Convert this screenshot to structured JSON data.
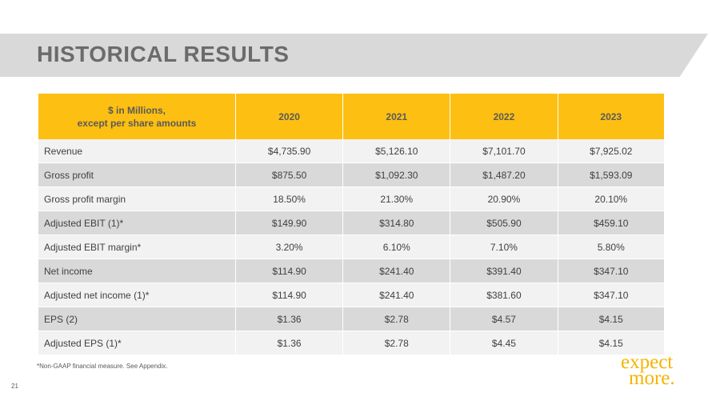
{
  "slide": {
    "title": "HISTORICAL RESULTS",
    "footnote": "*Non-GAAP financial measure. See Appendix.",
    "page_number": "21",
    "logo": {
      "line1": "expect",
      "line2": "more."
    }
  },
  "table": {
    "header_label_line1": "$ in Millions,",
    "header_label_line2": "except per share amounts",
    "years": [
      "2020",
      "2021",
      "2022",
      "2023"
    ],
    "rows": [
      {
        "label": "Revenue",
        "values": [
          "$4,735.90",
          "$5,126.10",
          "$7,101.70",
          "$7,925.02"
        ]
      },
      {
        "label": "Gross profit",
        "values": [
          "$875.50",
          "$1,092.30",
          "$1,487.20",
          "$1,593.09"
        ]
      },
      {
        "label": "Gross profit margin",
        "values": [
          "18.50%",
          "21.30%",
          "20.90%",
          "20.10%"
        ]
      },
      {
        "label": "Adjusted EBIT (1)*",
        "values": [
          "$149.90",
          "$314.80",
          "$505.90",
          "$459.10"
        ]
      },
      {
        "label": "Adjusted EBIT margin*",
        "values": [
          "3.20%",
          "6.10%",
          "7.10%",
          "5.80%"
        ]
      },
      {
        "label": "Net income",
        "values": [
          "$114.90",
          "$241.40",
          "$391.40",
          "$347.10"
        ]
      },
      {
        "label": "Adjusted net income (1)*",
        "values": [
          "$114.90",
          "$241.40",
          "$381.60",
          "$347.10"
        ]
      },
      {
        "label": "EPS (2)",
        "values": [
          "$1.36",
          "$2.78",
          "$4.57",
          "$4.15"
        ]
      },
      {
        "label": "Adjusted EPS (1)*",
        "values": [
          "$1.36",
          "$2.78",
          "$4.45",
          "$4.15"
        ]
      }
    ]
  },
  "colors": {
    "header_fill": "#fdbf12",
    "band_fill": "#d9d9d9",
    "logo": "#f5b400"
  }
}
